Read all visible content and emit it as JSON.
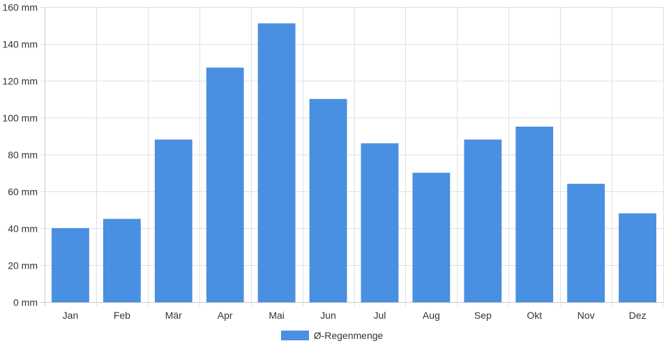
{
  "chart_data": {
    "type": "bar",
    "categories": [
      "Jan",
      "Feb",
      "Mär",
      "Apr",
      "Mai",
      "Jun",
      "Jul",
      "Aug",
      "Sep",
      "Okt",
      "Nov",
      "Dez"
    ],
    "series": [
      {
        "name": "Ø-Regenmenge",
        "values": [
          40,
          45,
          88,
          127,
          151,
          110,
          86,
          70,
          88,
          95,
          64,
          48
        ]
      }
    ],
    "y_ticks": [
      "0 mm",
      "20 mm",
      "40 mm",
      "60 mm",
      "80 mm",
      "100 mm",
      "120 mm",
      "140 mm",
      "160 mm"
    ],
    "ylim": [
      0,
      160
    ],
    "y_tick_step": 20,
    "grid": true,
    "legend_position": "bottom",
    "colors": {
      "bar": "#4A90E2",
      "grid": "#e0e0e0",
      "axis": "#c8c8c8",
      "text": "#333333"
    }
  }
}
